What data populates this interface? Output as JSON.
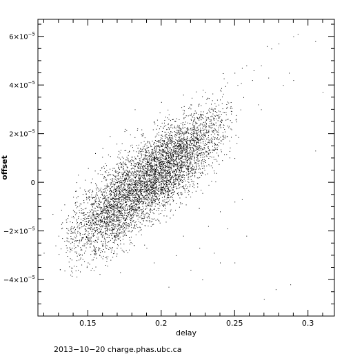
{
  "chart_data": {
    "type": "scatter",
    "title": "",
    "xlabel": "delay",
    "ylabel": "offset",
    "xlim": [
      0.116,
      0.318
    ],
    "ylim": [
      -5.5e-05,
      6.7e-05
    ],
    "x_ticks": [
      0.15,
      0.2,
      0.25,
      0.3
    ],
    "x_tick_labels": [
      "0.15",
      "0.2",
      "0.25",
      "0.3"
    ],
    "y_ticks": [
      -4e-05,
      -2e-05,
      0,
      2e-05,
      4e-05,
      6e-05
    ],
    "y_tick_labels": [
      {
        "mantissa": "−4×10",
        "exp": "−5"
      },
      {
        "mantissa": "−2×10",
        "exp": "−5"
      },
      {
        "mantissa": "0",
        "exp": ""
      },
      {
        "mantissa": "2×10",
        "exp": "−5"
      },
      {
        "mantissa": "4×10",
        "exp": "−5"
      },
      {
        "mantissa": "6×10",
        "exp": "−5"
      }
    ],
    "grid": false,
    "legend": false,
    "point_color": "#000000",
    "series": [
      {
        "points": [
          [
            0.29,
            6e-05
          ],
          [
            0.293,
            6.1e-05
          ],
          [
            0.28,
            5.7e-05
          ],
          [
            0.272,
            5.6e-05
          ],
          [
            0.275,
            5.5e-05
          ],
          [
            0.255,
            4.7e-05
          ],
          [
            0.258,
            4.8e-05
          ],
          [
            0.25,
            4.5e-05
          ],
          [
            0.263,
            4.6e-05
          ],
          [
            0.268,
            4.8e-05
          ],
          [
            0.287,
            4.5e-05
          ],
          [
            0.273,
            4.3e-05
          ],
          [
            0.262,
            4.2e-05
          ],
          [
            0.305,
            5.8e-05
          ],
          [
            0.31,
            3.7e-05
          ],
          [
            0.245,
            4.1e-05
          ],
          [
            0.24,
            3.8e-05
          ],
          [
            0.252,
            4e-05
          ],
          [
            0.256,
            3.5e-05
          ],
          [
            0.266,
            3.2e-05
          ],
          [
            0.268,
            3e-05
          ],
          [
            0.29,
            4.2e-05
          ],
          [
            0.283,
            4e-05
          ],
          [
            0.305,
            1.3e-05
          ],
          [
            0.245,
            3.1e-05
          ],
          [
            0.132,
            -1.9e-05
          ],
          [
            0.128,
            -2.6e-05
          ],
          [
            0.136,
            -2.8e-05
          ],
          [
            0.12,
            -2.9e-05
          ],
          [
            0.13,
            -2.2e-05
          ],
          [
            0.145,
            -3.1e-05
          ],
          [
            0.15,
            -3.3e-05
          ],
          [
            0.152,
            -3.6e-05
          ],
          [
            0.158,
            -3e-05
          ],
          [
            0.162,
            -3.4e-05
          ],
          [
            0.16,
            -2.6e-05
          ],
          [
            0.168,
            -2.4e-05
          ],
          [
            0.172,
            -3.7e-05
          ],
          [
            0.176,
            -2.8e-05
          ],
          [
            0.18,
            -2.5e-05
          ],
          [
            0.205,
            -4.3e-05
          ],
          [
            0.22,
            -3.6e-05
          ],
          [
            0.228,
            -4e-05
          ],
          [
            0.24,
            -3.3e-05
          ],
          [
            0.25,
            -3.3e-05
          ],
          [
            0.258,
            -2.2e-05
          ],
          [
            0.27,
            -4.8e-05
          ],
          [
            0.278,
            -4.4e-05
          ],
          [
            0.288,
            -4.2e-05
          ],
          [
            0.236,
            -2.9e-05
          ],
          [
            0.245,
            -1.9e-05
          ],
          [
            0.25,
            -8e-06
          ],
          [
            0.255,
            -7e-06
          ],
          [
            0.24,
            -1.2e-05
          ],
          [
            0.232,
            -1.8e-05
          ],
          [
            0.226,
            -2.7e-05
          ],
          [
            0.215,
            -2.2e-05
          ],
          [
            0.21,
            -3e-05
          ],
          [
            0.195,
            -3.3e-05
          ],
          [
            0.19,
            -2.7e-05
          ],
          [
            0.126,
            -1.3e-05
          ],
          [
            0.14,
            -6e-06
          ],
          [
            0.148,
            1e-06
          ],
          [
            0.155,
            1.2e-05
          ],
          [
            0.16,
            1.4e-05
          ],
          [
            0.175,
            2.1e-05
          ],
          [
            0.165,
            1.9e-05
          ],
          [
            0.182,
            3e-05
          ],
          [
            0.205,
            2.6e-05
          ],
          [
            0.215,
            3.6e-05
          ],
          [
            0.22,
            3.2e-05
          ],
          [
            0.23,
            3.7e-05
          ],
          [
            0.24,
            3.4e-05
          ],
          [
            0.2,
            3.3e-05
          ],
          [
            0.195,
            2.5e-05
          ]
        ]
      }
    ],
    "clusters": [
      {
        "slope": 0.00042,
        "intercept": -7.85e-05,
        "x_center": 0.19,
        "x_spread": 0.024,
        "x_min": 0.13,
        "x_max": 0.255,
        "y_spread": 8.5e-06,
        "count": 3200
      },
      {
        "slope": 0.00045,
        "intercept": -8.45e-05,
        "x_center": 0.21,
        "x_spread": 0.018,
        "x_min": 0.165,
        "x_max": 0.248,
        "y_spread": 7.5e-06,
        "count": 1600
      },
      {
        "slope": 0.00032,
        "intercept": -6.65e-05,
        "x_center": 0.165,
        "x_spread": 0.012,
        "x_min": 0.13,
        "x_max": 0.2,
        "y_spread": 8e-06,
        "count": 900
      }
    ]
  },
  "footer": {
    "text": "2013−10−20  charge.phas.ubc.ca"
  }
}
